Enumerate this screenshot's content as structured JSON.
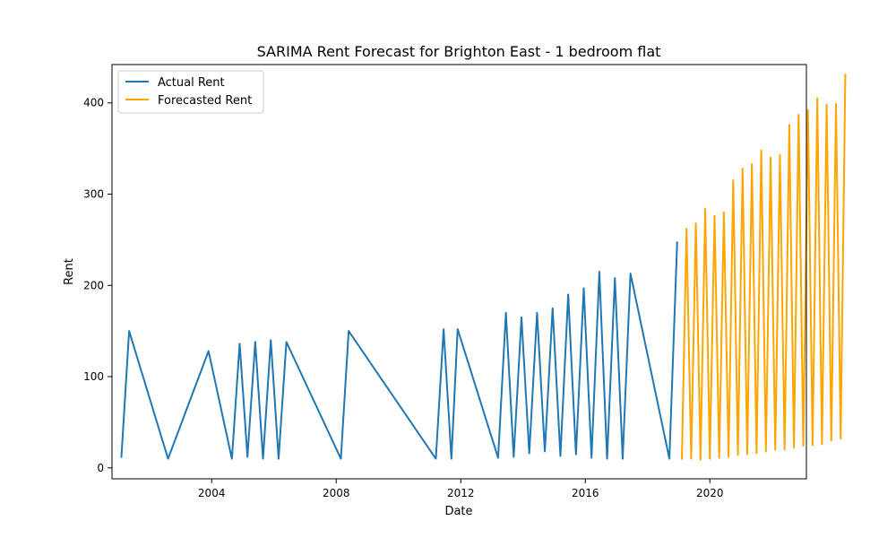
{
  "chart_data": {
    "type": "line",
    "title": "SARIMA Rent Forecast for Brighton East - 1 bedroom flat",
    "xlabel": "Date",
    "ylabel": "Rent",
    "xlim": [
      2000.8,
      2023.1
    ],
    "ylim": [
      -12,
      442
    ],
    "x_ticks": [
      2004,
      2008,
      2012,
      2016,
      2020
    ],
    "x_tick_labels": [
      "2004",
      "2008",
      "2012",
      "2016",
      "2020"
    ],
    "y_ticks": [
      0,
      100,
      200,
      300,
      400
    ],
    "y_tick_labels": [
      "0",
      "100",
      "200",
      "300",
      "400"
    ],
    "grid": false,
    "legend": {
      "placement": "upper-left"
    },
    "series": [
      {
        "name": "Actual Rent",
        "color": "#1f77b4",
        "points": [
          [
            2001.1,
            11
          ],
          [
            2001.35,
            150
          ],
          [
            2002.6,
            10
          ],
          [
            2003.9,
            128
          ],
          [
            2004.65,
            10
          ],
          [
            2004.9,
            136
          ],
          [
            2005.15,
            12
          ],
          [
            2005.4,
            138
          ],
          [
            2005.65,
            10
          ],
          [
            2005.9,
            140
          ],
          [
            2006.15,
            10
          ],
          [
            2006.4,
            138
          ],
          [
            2008.15,
            10
          ],
          [
            2008.4,
            150
          ],
          [
            2011.2,
            10
          ],
          [
            2011.45,
            152
          ],
          [
            2011.7,
            10
          ],
          [
            2011.9,
            152
          ],
          [
            2013.2,
            11
          ],
          [
            2013.45,
            170
          ],
          [
            2013.7,
            12
          ],
          [
            2013.95,
            165
          ],
          [
            2014.2,
            16
          ],
          [
            2014.45,
            170
          ],
          [
            2014.7,
            18
          ],
          [
            2014.95,
            175
          ],
          [
            2015.2,
            13
          ],
          [
            2015.45,
            190
          ],
          [
            2015.7,
            15
          ],
          [
            2015.95,
            197
          ],
          [
            2016.2,
            11
          ],
          [
            2016.45,
            215
          ],
          [
            2016.7,
            10
          ],
          [
            2016.95,
            208
          ],
          [
            2017.2,
            10
          ],
          [
            2017.45,
            213
          ],
          [
            2018.7,
            10
          ],
          [
            2018.95,
            248
          ]
        ]
      },
      {
        "name": "Forecasted Rent",
        "color": "#ffa500",
        "points": [
          [
            2019.1,
            9
          ],
          [
            2019.25,
            262
          ],
          [
            2019.4,
            10
          ],
          [
            2019.55,
            268
          ],
          [
            2019.7,
            9
          ],
          [
            2019.85,
            284
          ],
          [
            2020.0,
            10
          ],
          [
            2020.15,
            276
          ],
          [
            2020.3,
            11
          ],
          [
            2020.45,
            280
          ],
          [
            2020.6,
            12
          ],
          [
            2020.75,
            315
          ],
          [
            2020.9,
            14
          ],
          [
            2021.05,
            328
          ],
          [
            2021.2,
            15
          ],
          [
            2021.35,
            333
          ],
          [
            2021.5,
            16
          ],
          [
            2021.65,
            348
          ],
          [
            2021.8,
            18
          ],
          [
            2021.95,
            340
          ],
          [
            2022.1,
            20
          ],
          [
            2022.25,
            343
          ],
          [
            2022.4,
            20
          ],
          [
            2022.55,
            376
          ],
          [
            2022.7,
            22
          ],
          [
            2022.85,
            387
          ],
          [
            2023.0,
            24
          ],
          [
            2023.15,
            392
          ],
          [
            2023.3,
            25
          ],
          [
            2023.45,
            405
          ],
          [
            2023.6,
            26
          ],
          [
            2023.75,
            398
          ],
          [
            2023.9,
            30
          ],
          [
            2024.05,
            399
          ],
          [
            2024.2,
            32
          ],
          [
            2024.35,
            432
          ]
        ]
      }
    ]
  }
}
